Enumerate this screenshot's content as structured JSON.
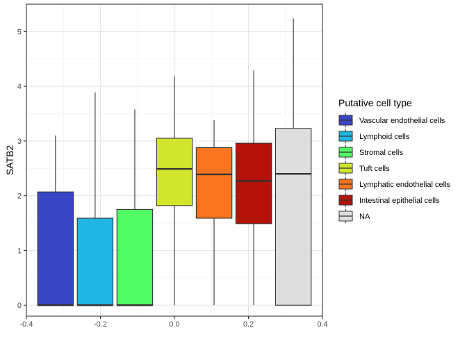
{
  "chart_data": {
    "type": "boxplot",
    "title": "",
    "xlabel": "",
    "ylabel": "SATB2",
    "xlim": [
      -0.4,
      0.4
    ],
    "ylim": [
      -0.2,
      5.5
    ],
    "x_ticks": [
      -0.4,
      -0.2,
      0.0,
      0.2,
      0.4
    ],
    "x_tick_labels": [
      "-0.4",
      "-0.2",
      "0.0",
      "0.2",
      "0.4"
    ],
    "y_ticks": [
      0,
      1,
      2,
      3,
      4,
      5
    ],
    "y_tick_labels": [
      "0",
      "1",
      "2",
      "3",
      "4",
      "5"
    ],
    "grid": true,
    "legend": {
      "title": "Putative cell type",
      "position": "right"
    },
    "series": [
      {
        "name": "Vascular endothelial cells",
        "color": "#3845C4",
        "x_center": -0.3214,
        "x_min": -0.3696,
        "x_max": -0.2732,
        "whisker_low": 0.0,
        "q1": 0.0,
        "median": 0.0,
        "q3": 2.07,
        "whisker_high": 3.1
      },
      {
        "name": "Lymphoid cells",
        "color": "#20B6E4",
        "x_center": -0.2143,
        "x_min": -0.2625,
        "x_max": -0.1661,
        "whisker_low": 0.0,
        "q1": 0.0,
        "median": 0.0,
        "q3": 1.59,
        "whisker_high": 3.89
      },
      {
        "name": "Stromal cells",
        "color": "#50FC63",
        "x_center": -0.1071,
        "x_min": -0.1554,
        "x_max": -0.0589,
        "whisker_low": 0.0,
        "q1": 0.0,
        "median": 0.0,
        "q3": 1.75,
        "whisker_high": 3.58
      },
      {
        "name": "Tuft cells",
        "color": "#D0E52B",
        "x_center": 0.0,
        "x_min": -0.0482,
        "x_max": 0.0482,
        "whisker_low": 0.0,
        "q1": 1.82,
        "median": 2.49,
        "q3": 3.05,
        "whisker_high": 4.19
      },
      {
        "name": "Lymphatic endothelial cells",
        "color": "#FB7420",
        "x_center": 0.1071,
        "x_min": 0.0589,
        "x_max": 0.1554,
        "whisker_low": 0.0,
        "q1": 1.59,
        "median": 2.39,
        "q3": 2.88,
        "whisker_high": 3.38
      },
      {
        "name": "Intestinal epithelial cells",
        "color": "#B5130A",
        "x_center": 0.2143,
        "x_min": 0.1661,
        "x_max": 0.2625,
        "whisker_low": 0.0,
        "q1": 1.49,
        "median": 2.27,
        "q3": 2.96,
        "whisker_high": 4.29
      },
      {
        "name": "NA",
        "color": "#DEDEDE",
        "x_center": 0.3214,
        "x_min": 0.2732,
        "x_max": 0.3696,
        "whisker_low": 0.0,
        "q1": 0.0,
        "median": 2.4,
        "q3": 3.23,
        "whisker_high": 5.24
      }
    ]
  }
}
